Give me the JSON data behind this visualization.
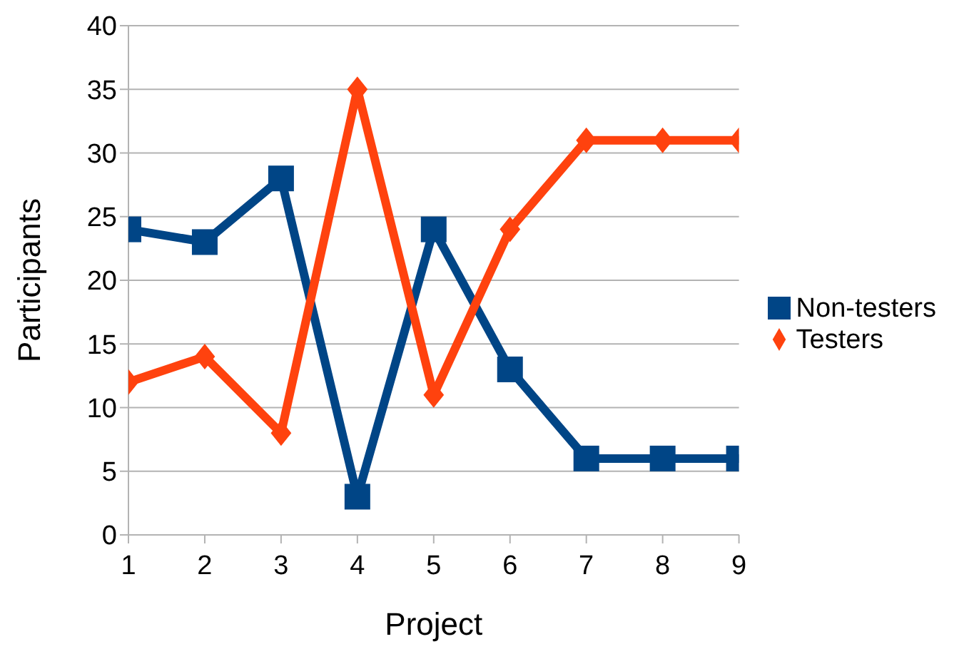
{
  "chart_data": {
    "type": "line",
    "xlabel": "Project",
    "ylabel": "Participants",
    "x": [
      1,
      2,
      3,
      4,
      5,
      6,
      7,
      8,
      9
    ],
    "xlim": [
      1,
      9
    ],
    "xticks": [
      1,
      2,
      3,
      4,
      5,
      6,
      7,
      8,
      9
    ],
    "ylim": [
      0,
      40
    ],
    "yticks": [
      0,
      5,
      10,
      15,
      20,
      25,
      30,
      35,
      40
    ],
    "grid": "y",
    "legend": "right",
    "line_style": "solid",
    "series": [
      {
        "name": "Non-testers",
        "color": "#004586",
        "marker": "square",
        "values": [
          24,
          23,
          28,
          3,
          24,
          13,
          6,
          6,
          6
        ]
      },
      {
        "name": "Testers",
        "color": "#ff420e",
        "marker": "diamond",
        "values": [
          12,
          14,
          8,
          35,
          11,
          24,
          31,
          31,
          31
        ]
      }
    ]
  }
}
